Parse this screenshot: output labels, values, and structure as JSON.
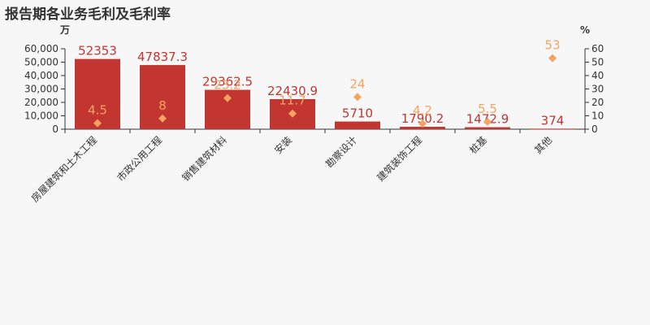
{
  "chart_data": {
    "type": "bar",
    "title": "报告期各业务毛利及毛利率",
    "categories": [
      "房屋建筑和土木工程",
      "市政公用工程",
      "销售建筑材料",
      "安装",
      "勘察设计",
      "建筑装饰工程",
      "桩基",
      "其他"
    ],
    "series": [
      {
        "type": "bar",
        "axis": "left",
        "values": [
          52353,
          47837.3,
          29362.5,
          22430.9,
          5710,
          1790.2,
          1472.9,
          374
        ],
        "value_labels": [
          "52353",
          "47837.3",
          "29362.5",
          "22430.9",
          "5710",
          "1790.2",
          "1472.9",
          "374"
        ],
        "color": "#c23531"
      },
      {
        "type": "scatter",
        "axis": "right",
        "values": [
          4.5,
          8,
          23.2,
          11.7,
          24,
          4.2,
          5.5,
          53
        ],
        "value_labels": [
          "4.5",
          "8",
          "23.2",
          "11.7",
          "24",
          "4.2",
          "5.5",
          "53"
        ],
        "color": "#f4a460"
      }
    ],
    "y_left": {
      "unit": "万",
      "ylim": [
        0,
        60000
      ],
      "ticks": [
        "0",
        "10,000",
        "20,000",
        "30,000",
        "40,000",
        "50,000",
        "60,000"
      ]
    },
    "y_right": {
      "unit": "%",
      "ylim": [
        0,
        60
      ],
      "ticks": [
        "0",
        "10",
        "20",
        "30",
        "40",
        "50",
        "60"
      ]
    },
    "grid": false,
    "legend": "none"
  }
}
